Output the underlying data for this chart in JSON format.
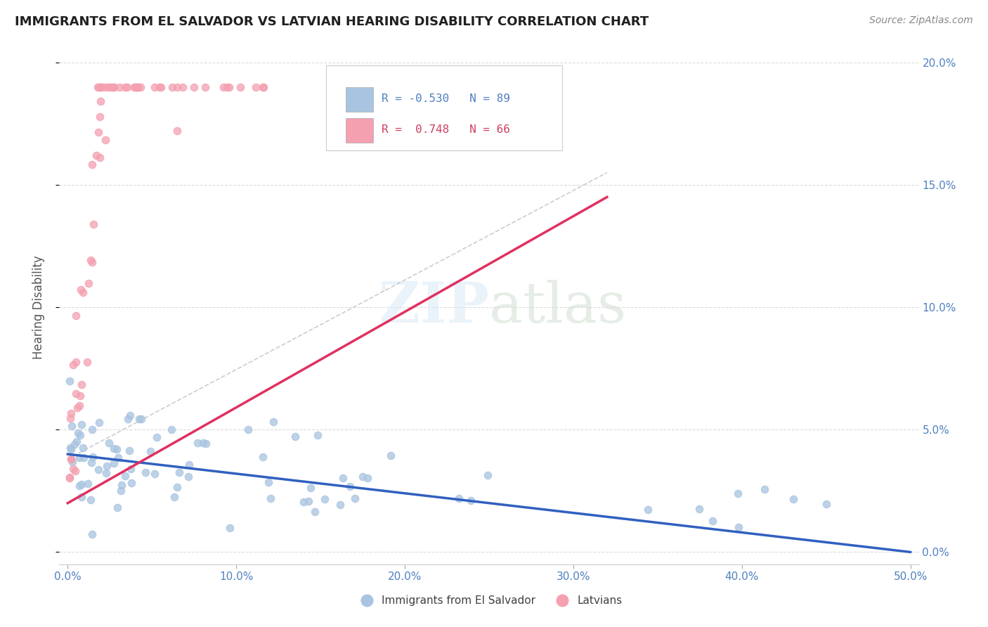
{
  "title": "IMMIGRANTS FROM EL SALVADOR VS LATVIAN HEARING DISABILITY CORRELATION CHART",
  "source": "Source: ZipAtlas.com",
  "ylabel": "Hearing Disability",
  "legend_R1": "-0.530",
  "legend_N1": "89",
  "legend_R2": "0.748",
  "legend_N2": "66",
  "label1": "Immigrants from El Salvador",
  "label2": "Latvians",
  "scatter_blue_color": "#a8c4e0",
  "scatter_pink_color": "#f4a0b0",
  "blue_line_color": "#3060c0",
  "pink_line_color": "#e03060",
  "dash_line_color": "#c0c0c0",
  "grid_color": "#d8d8d8",
  "title_color": "#202020",
  "axis_color": "#5080c0",
  "bg_color": "#ffffff",
  "xlim": [
    0.0,
    0.5
  ],
  "ylim": [
    0.0,
    0.2
  ],
  "xticks": [
    0.0,
    0.1,
    0.2,
    0.3,
    0.4,
    0.5
  ],
  "yticks_right": [
    0.0,
    0.05,
    0.1,
    0.15,
    0.2
  ],
  "blue_line_x0": 0.0,
  "blue_line_y0": 0.04,
  "blue_line_x1": 0.5,
  "blue_line_y1": 0.0,
  "pink_line_x0": 0.0,
  "pink_line_y0": 0.02,
  "pink_line_x1": 0.32,
  "pink_line_y1": 0.145,
  "dash_line_x0": 0.0,
  "dash_line_y0": 0.038,
  "dash_line_x1": 0.32,
  "dash_line_y1": 0.155
}
